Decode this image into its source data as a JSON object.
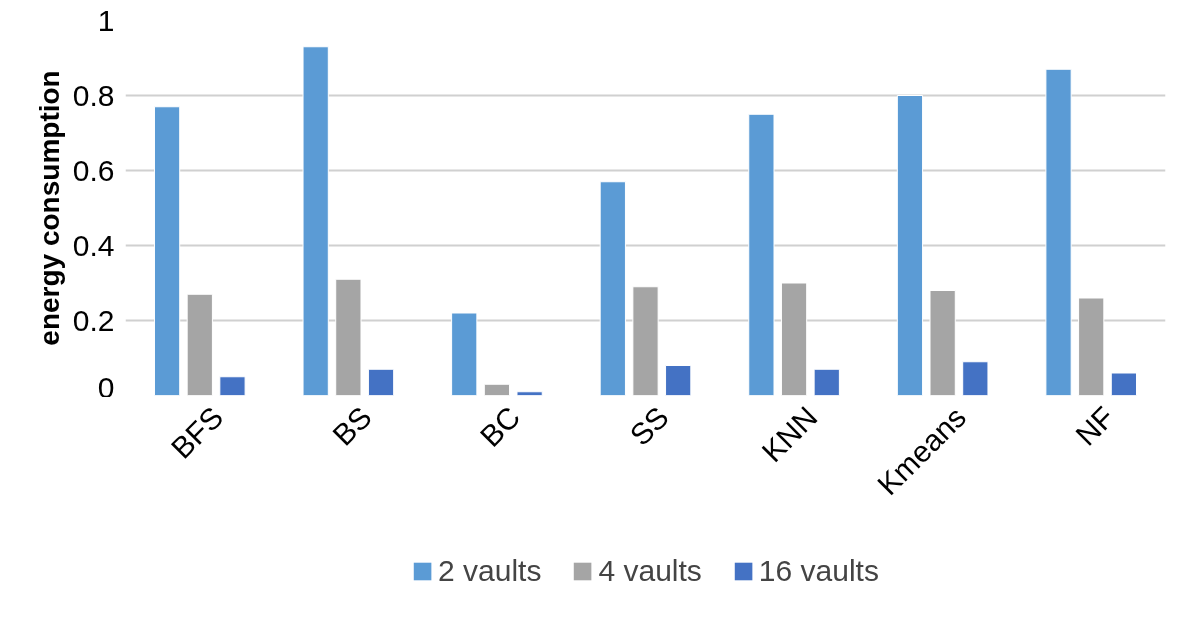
{
  "chart_data": {
    "type": "bar",
    "ylabel": "energy consumption",
    "categories": [
      "BFS",
      "BS",
      "BC",
      "SS",
      "KNN",
      "Kmeans",
      "NF"
    ],
    "series": [
      {
        "name": "2 vaults",
        "color": "#5b9bd5",
        "values": [
          0.77,
          0.93,
          0.22,
          0.57,
          0.75,
          0.8,
          0.87
        ]
      },
      {
        "name": "4 vaults",
        "color": "#a5a5a5",
        "values": [
          0.27,
          0.31,
          0.03,
          0.29,
          0.3,
          0.28,
          0.26
        ]
      },
      {
        "name": "16 vaults",
        "color": "#4472c4",
        "values": [
          0.05,
          0.07,
          0.01,
          0.08,
          0.07,
          0.09,
          0.06
        ]
      }
    ],
    "ylim": [
      0,
      1
    ],
    "yticks": [
      0,
      {
        "value": 0.2,
        "label": "0.2"
      },
      {
        "value": 0.4,
        "label": "0.4"
      },
      {
        "value": 0.6,
        "label": "0.6"
      },
      {
        "value": 0.8,
        "label": "0.8"
      },
      1
    ],
    "grid": "y",
    "legend": "bottom"
  }
}
